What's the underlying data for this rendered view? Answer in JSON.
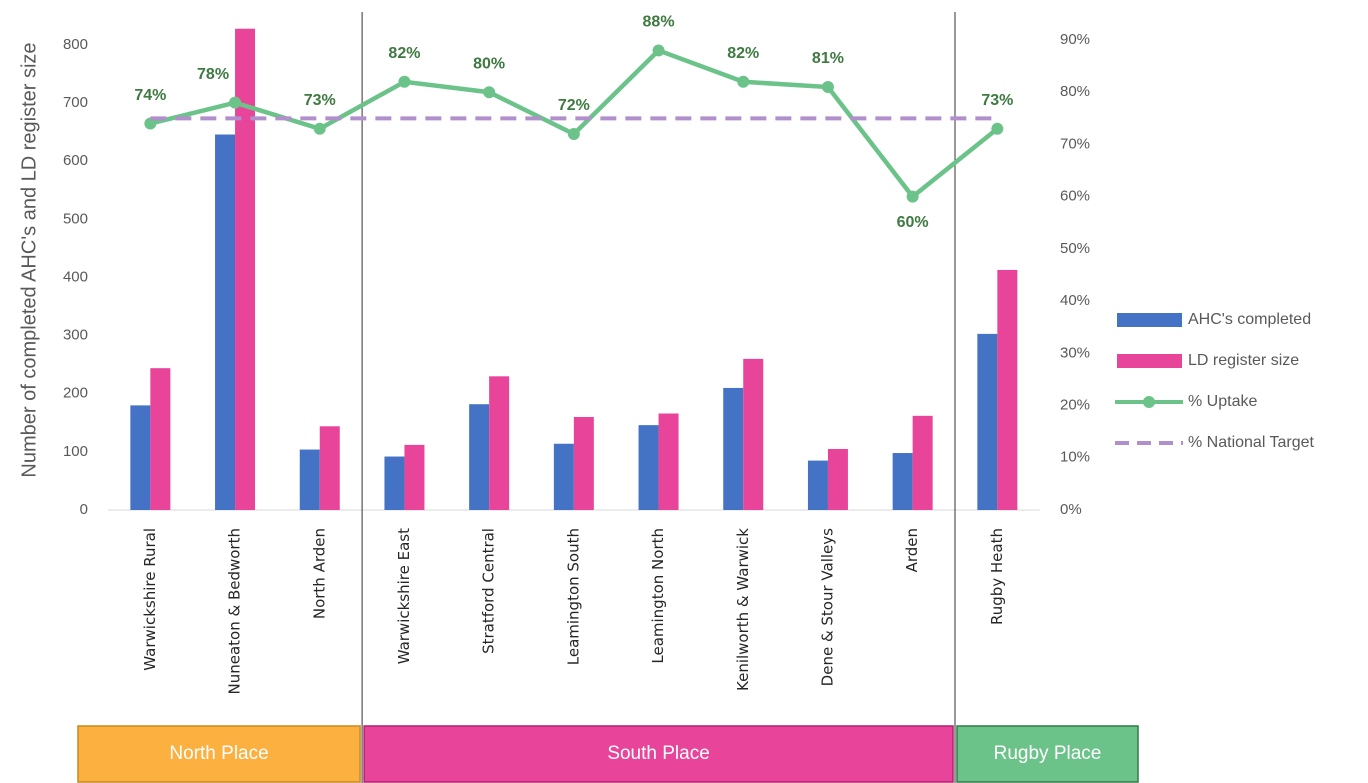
{
  "chart_data": {
    "type": "bar",
    "y_axis_label": "Number of completed AHC's and LD register size",
    "categories": [
      "Warwickshire Rural",
      "Nuneaton & Bedworth",
      "North Arden",
      "Warwickshire East",
      "Stratford Central",
      "Leamington South",
      "Leamington North",
      "Kenilworth & Warwick",
      "Dene & Stour Valleys",
      "Arden",
      "Rugby Heath"
    ],
    "series": [
      {
        "name": "AHC's completed",
        "type": "bar",
        "color": "#4472c4",
        "values": [
          180,
          646,
          104,
          92,
          182,
          114,
          146,
          210,
          85,
          98,
          303
        ]
      },
      {
        "name": "LD register size",
        "type": "bar",
        "color": "#e8449a",
        "values": [
          244,
          828,
          144,
          112,
          230,
          160,
          166,
          260,
          105,
          162,
          413
        ]
      },
      {
        "name": "% Uptake",
        "type": "line",
        "axis": "y2",
        "color": "#6cc38a",
        "marker": true,
        "values": [
          74,
          78,
          73,
          82,
          80,
          72,
          88,
          82,
          81,
          60,
          73
        ],
        "value_labels": [
          "74%",
          "78%",
          "73%",
          "82%",
          "80%",
          "72%",
          "88%",
          "82%",
          "81%",
          "60%",
          "73%"
        ]
      },
      {
        "name": "% National Target",
        "type": "line",
        "axis": "y2",
        "color": "#b08fcc",
        "dashed": true,
        "values": [
          75,
          75,
          75,
          75,
          75,
          75,
          75,
          75,
          75,
          75,
          75
        ]
      }
    ],
    "ylim": [
      0,
      800
    ],
    "yticks": [
      0,
      100,
      200,
      300,
      400,
      500,
      600,
      700,
      800
    ],
    "y2lim": [
      0,
      90
    ],
    "y2ticks": [
      {
        "value": 0,
        "label": "0%"
      },
      {
        "value": 10,
        "label": "10%"
      },
      {
        "value": 20,
        "label": "20%"
      },
      {
        "value": 30,
        "label": "30%"
      },
      {
        "value": 40,
        "label": "40%"
      },
      {
        "value": 50,
        "label": "50%"
      },
      {
        "value": 60,
        "label": "60%"
      },
      {
        "value": 70,
        "label": "70%"
      },
      {
        "value": 80,
        "label": "80%"
      },
      {
        "value": 90,
        "label": "90%"
      }
    ],
    "groups": [
      {
        "name": "North Place",
        "color": "#fbb040",
        "border": "#c58a1c",
        "categories": [
          "Warwickshire Rural",
          "Nuneaton & Bedworth",
          "North Arden"
        ]
      },
      {
        "name": "South Place",
        "color": "#e8449a",
        "border": "#b0206e",
        "categories": [
          "Warwickshire East",
          "Stratford Central",
          "Leamington South",
          "Leamington North",
          "Kenilworth & Warwick",
          "Dene & Stour Valleys",
          "Arden"
        ]
      },
      {
        "name": "Rugby Place",
        "color": "#6cc38a",
        "border": "#2f7a46",
        "categories": [
          "Rugby Heath"
        ]
      }
    ],
    "legend": "right"
  }
}
